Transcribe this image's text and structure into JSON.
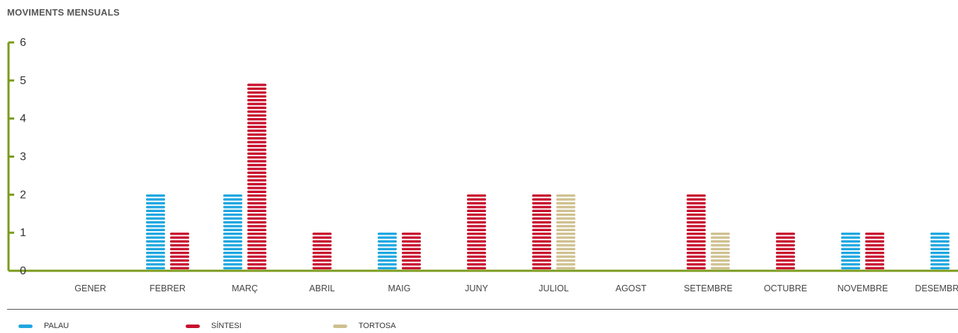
{
  "chart_data": {
    "type": "bar",
    "title": "MOVIMENTS MENSUALS",
    "xlabel": "",
    "ylabel": "",
    "ylim": [
      0,
      6
    ],
    "yticks": [
      "0",
      "1",
      "2",
      "3",
      "4",
      "5",
      "6"
    ],
    "categories": [
      "GENER",
      "FEBRER",
      "MARÇ",
      "ABRIL",
      "MAIG",
      "JUNY",
      "JULIOL",
      "AGOST",
      "SETEMBRE",
      "OCTUBRE",
      "NOVEMBRE",
      "DESEMBRE"
    ],
    "series": [
      {
        "name": "PALAU",
        "color": "#1ea7e0",
        "values": [
          0,
          2,
          2,
          0,
          1,
          0,
          0,
          0,
          0,
          0,
          1,
          1
        ]
      },
      {
        "name": "SÍNTESI",
        "color": "#c8102e",
        "values": [
          0,
          1,
          5,
          1,
          1,
          2,
          2,
          0,
          2,
          1,
          1,
          0
        ]
      },
      {
        "name": "TORTOSA",
        "color": "#cfc08f",
        "values": [
          0,
          0,
          0,
          0,
          0,
          0,
          2,
          0,
          1,
          0,
          0,
          0
        ]
      }
    ],
    "axis_color": "#7a9a1a",
    "legend_position": "bottom"
  }
}
